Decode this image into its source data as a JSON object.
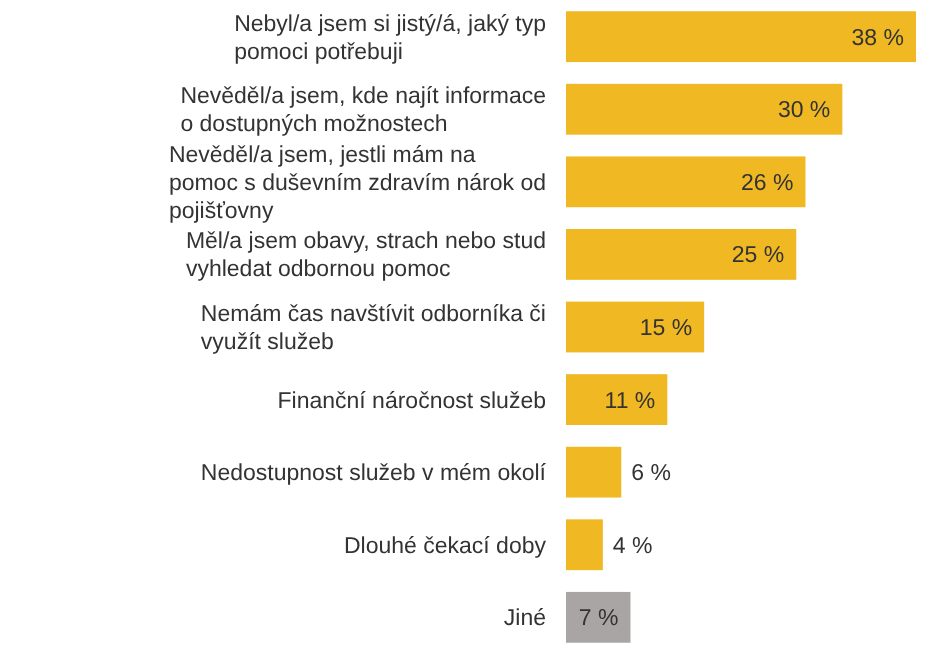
{
  "chart_data": {
    "type": "bar",
    "orientation": "horizontal",
    "categories": [
      "Nebyl/a jsem si jistý/á, jaký typ pomoci potřebuji",
      "Nevěděl/a jsem, kde najít informace o dostupných možnostech",
      "Nevěděl/a jsem, jestli mám na pomoc s duševním zdravím nárok od pojišťovny",
      "Měl/a jsem obavy, strach nebo stud vyhledat odbornou pomoc",
      "Nemám čas navštívit odborníka či využít služeb",
      "Finanční náročnost služeb",
      "Nedostupnost služeb v mém okolí",
      "Dlouhé čekací doby",
      "Jiné"
    ],
    "values": [
      38,
      30,
      26,
      25,
      15,
      11,
      6,
      4,
      7
    ],
    "colors": [
      "#f0b823",
      "#f0b823",
      "#f0b823",
      "#f0b823",
      "#f0b823",
      "#f0b823",
      "#f0b823",
      "#f0b823",
      "#a9a5a5"
    ],
    "value_labels": [
      "38 %",
      "30 %",
      "26 %",
      "25 %",
      "15 %",
      "11 %",
      "6 %",
      "4 %",
      "7 %"
    ]
  }
}
